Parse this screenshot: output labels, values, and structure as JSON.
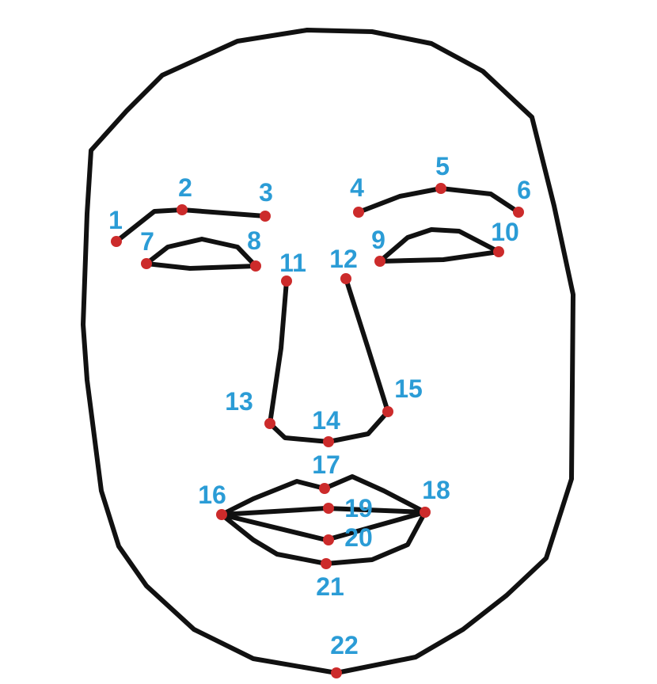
{
  "colors": {
    "outline": "#111111",
    "landmark_point": "#cc2b2b",
    "label": "#2b9cd6",
    "background": "#ffffff"
  },
  "landmarks": [
    {
      "id": 1,
      "label": "1"
    },
    {
      "id": 2,
      "label": "2"
    },
    {
      "id": 3,
      "label": "3"
    },
    {
      "id": 4,
      "label": "4"
    },
    {
      "id": 5,
      "label": "5"
    },
    {
      "id": 6,
      "label": "6"
    },
    {
      "id": 7,
      "label": "7"
    },
    {
      "id": 8,
      "label": "8"
    },
    {
      "id": 9,
      "label": "9"
    },
    {
      "id": 10,
      "label": "10"
    },
    {
      "id": 11,
      "label": "11"
    },
    {
      "id": 12,
      "label": "12"
    },
    {
      "id": 13,
      "label": "13"
    },
    {
      "id": 14,
      "label": "14"
    },
    {
      "id": 15,
      "label": "15"
    },
    {
      "id": 16,
      "label": "16"
    },
    {
      "id": 17,
      "label": "17"
    },
    {
      "id": 18,
      "label": "18"
    },
    {
      "id": 19,
      "label": "19"
    },
    {
      "id": 20,
      "label": "20"
    },
    {
      "id": 21,
      "label": "21"
    },
    {
      "id": 22,
      "label": "22"
    }
  ]
}
